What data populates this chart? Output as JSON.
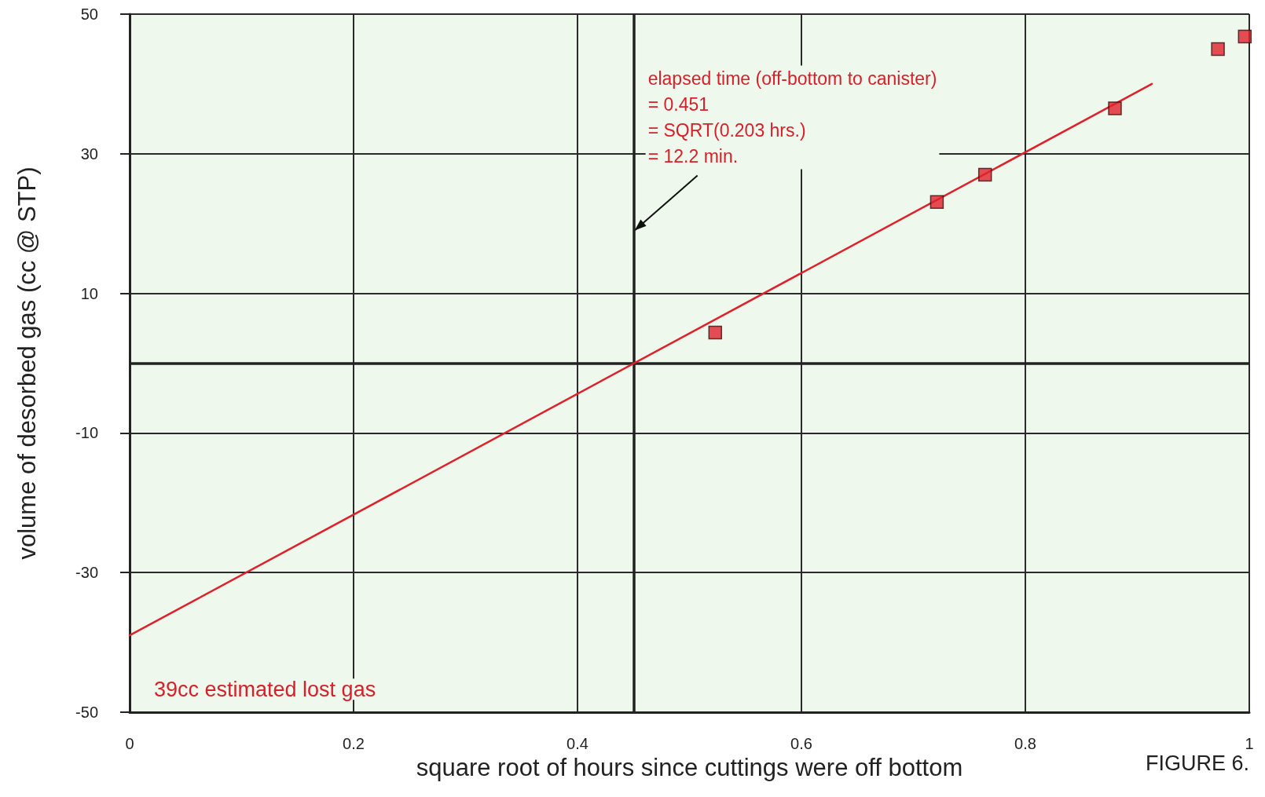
{
  "chart_data": {
    "type": "scatter",
    "xlabel": "square root of hours since cuttings were off bottom",
    "ylabel": "volume of desorbed gas (cc @ STP)",
    "xlim": [
      0,
      1
    ],
    "xticks": [
      0,
      0.2,
      0.4,
      0.6,
      0.8,
      1
    ],
    "ylim": [
      -50,
      50
    ],
    "yticks": [
      -50,
      -30,
      -10,
      10,
      30,
      50
    ],
    "grid": true,
    "marker": "square",
    "series": [
      {
        "color": "#e0202a",
        "x": [
          0.523,
          0.721,
          0.764,
          0.88,
          0.972,
          0.996
        ],
        "values": [
          4.4,
          23.1,
          27,
          36.5,
          45,
          46.8
        ]
      },
      {
        "type": "line",
        "color": "#e0202a",
        "marker": "none",
        "x": [
          0,
          0.913
        ],
        "values": [
          -39,
          40
        ]
      }
    ],
    "ref_lines": [
      {
        "axis": "y",
        "value": 0,
        "color": "#222222"
      },
      {
        "axis": "x",
        "value": 0.451,
        "color": "#222222"
      }
    ],
    "annotations": [
      {
        "text": "elapsed time (off-bottom to canister)\n= 0.451\n= SQRT(0.203 hrs.)\n= 12.2 min.",
        "x": 0.451,
        "y": 19
      },
      {
        "text": "39cc estimated lost gas",
        "x": 0,
        "y": -39
      },
      "FIGURE 6."
    ]
  }
}
